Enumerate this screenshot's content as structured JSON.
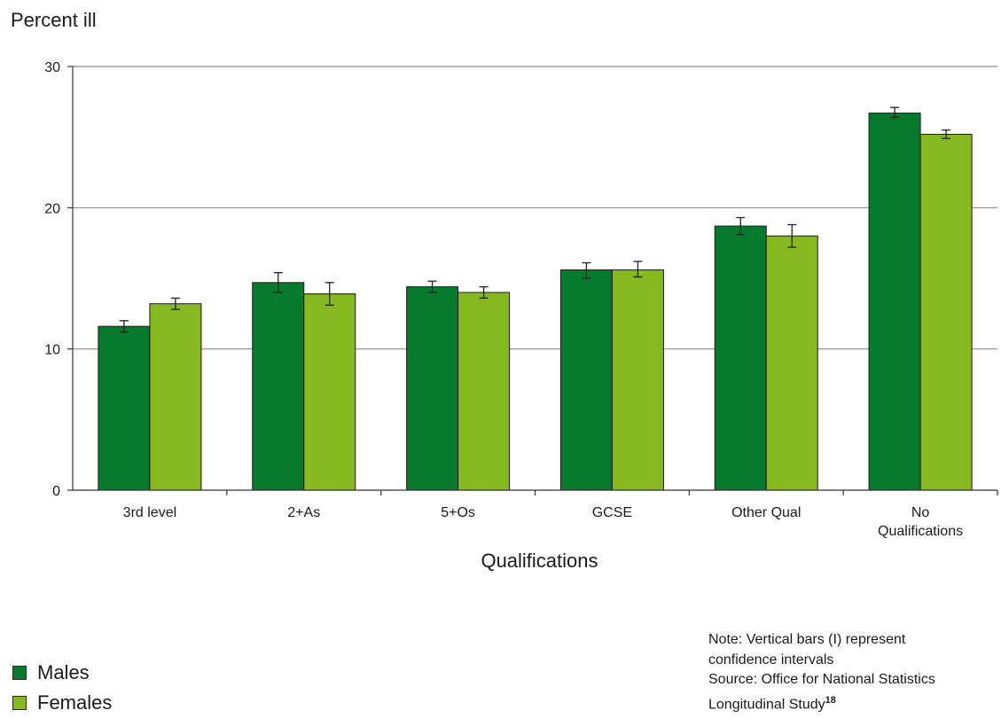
{
  "chart_data": {
    "type": "bar",
    "ylabel": "Percent ill",
    "xlabel": "Qualifications",
    "ylim": [
      0,
      30
    ],
    "yticks": [
      0,
      10,
      20,
      30
    ],
    "grid": true,
    "categories": [
      "3rd level",
      "2+As",
      "5+Os",
      "GCSE",
      "Other Qual",
      "No Qualifications"
    ],
    "category_lines": [
      [
        "3rd level"
      ],
      [
        "2+As"
      ],
      [
        "5+Os"
      ],
      [
        "GCSE"
      ],
      [
        "Other Qual"
      ],
      [
        "No",
        "Qualifications"
      ]
    ],
    "series": [
      {
        "name": "Males",
        "color": "#077a2d",
        "values": [
          11.6,
          14.7,
          14.4,
          15.6,
          18.7,
          26.7
        ],
        "ci_low": [
          11.2,
          14.0,
          14.0,
          15.0,
          18.1,
          26.4
        ],
        "ci_high": [
          12.0,
          15.4,
          14.8,
          16.1,
          19.3,
          27.1
        ]
      },
      {
        "name": "Females",
        "color": "#86b91f",
        "values": [
          13.2,
          13.9,
          14.0,
          15.6,
          18.0,
          25.2
        ],
        "ci_low": [
          12.8,
          13.1,
          13.6,
          15.1,
          17.2,
          24.9
        ],
        "ci_high": [
          13.6,
          14.7,
          14.4,
          16.2,
          18.8,
          25.5
        ]
      }
    ],
    "legend_position": "bottom-left"
  },
  "note": {
    "line1": "Note: Vertical bars (I) represent",
    "line2": "confidence intervals",
    "line3": "Source: Office for National Statistics",
    "line4": "Longitudinal Study",
    "ref": "18"
  }
}
